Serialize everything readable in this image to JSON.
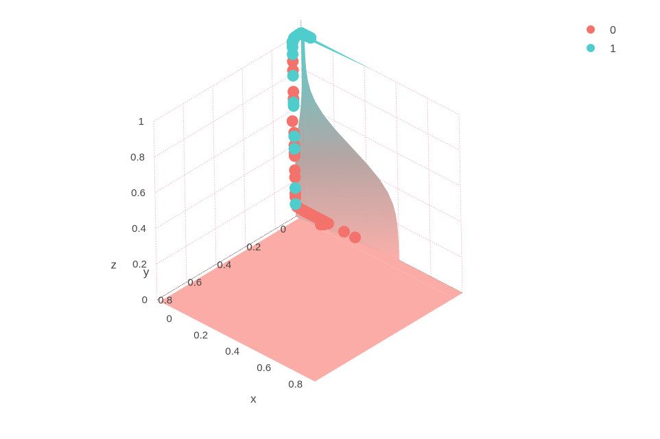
{
  "chart_data": {
    "type": "scatter3d-surface",
    "title": "",
    "axes": {
      "x": {
        "label": "x",
        "range": [
          0,
          1
        ],
        "ticks": [
          "0",
          "0.2",
          "0.4",
          "0.6",
          "0.8"
        ]
      },
      "y": {
        "label": "y",
        "range": [
          0,
          1
        ],
        "ticks": [
          "0",
          "0.2",
          "0.4",
          "0.6",
          "0.8"
        ]
      },
      "z": {
        "label": "z",
        "range": [
          0,
          1
        ],
        "ticks": [
          "0",
          "0.2",
          "0.4",
          "0.6",
          "0.8",
          "1"
        ]
      }
    },
    "grid": true,
    "legend": {
      "placement": "top-right"
    },
    "surface": {
      "description_of_shape": "logistic",
      "colorscale": [
        "#fcaca6",
        "#4ecdcc"
      ],
      "z_range": [
        0,
        1
      ]
    },
    "series": [
      {
        "name": "0",
        "color": "#f3726b",
        "points": [
          [
            0.0,
            0.0,
            0.0
          ],
          [
            0.0,
            0.01,
            0.01
          ],
          [
            0.0,
            0.03,
            0.03
          ],
          [
            0.0,
            0.05,
            0.05
          ],
          [
            0.0,
            0.06,
            0.11
          ],
          [
            0.0,
            0.06,
            0.13
          ],
          [
            0.0,
            0.06,
            0.22
          ],
          [
            0.0,
            0.06,
            0.26
          ],
          [
            0.0,
            0.06,
            0.34
          ],
          [
            0.0,
            0.06,
            0.36
          ],
          [
            0.0,
            0.06,
            0.4
          ],
          [
            0.0,
            0.06,
            0.47
          ],
          [
            0.0,
            0.07,
            0.54
          ],
          [
            0.0,
            0.06,
            0.66
          ],
          [
            0.0,
            0.06,
            0.7
          ],
          [
            0.0,
            0.06,
            0.82
          ],
          [
            0.0,
            0.06,
            0.87
          ],
          [
            0.32,
            0.0,
            0.0
          ],
          [
            0.15,
            0.0,
            0.0
          ],
          [
            0.13,
            0.0,
            0.0
          ],
          [
            0.12,
            0.0,
            0.0
          ],
          [
            0.11,
            0.0,
            0.0
          ],
          [
            0.1,
            0.0,
            0.0
          ],
          [
            0.09,
            0.0,
            0.0
          ],
          [
            0.08,
            0.0,
            0.0
          ],
          [
            0.07,
            0.0,
            0.0
          ],
          [
            0.06,
            0.0,
            0.0
          ],
          [
            0.05,
            0.0,
            0.0
          ],
          [
            0.04,
            0.0,
            0.0
          ],
          [
            0.03,
            0.0,
            0.0
          ],
          [
            0.02,
            0.0,
            0.0
          ],
          [
            0.01,
            0.0,
            0.0
          ],
          [
            0.0,
            0.0,
            0.0
          ],
          [
            0.25,
            0.0,
            0.0
          ],
          [
            0.14,
            0.02,
            0.0
          ],
          [
            0.13,
            0.03,
            0.0
          ]
        ]
      },
      {
        "name": "1",
        "color": "#4ecdcc",
        "points": [
          [
            0.0,
            0.06,
            0.07
          ],
          [
            0.0,
            0.06,
            0.16
          ],
          [
            0.0,
            0.06,
            0.38
          ],
          [
            0.0,
            0.06,
            0.45
          ],
          [
            0.0,
            0.06,
            0.62
          ],
          [
            0.0,
            0.06,
            0.64
          ],
          [
            0.0,
            0.06,
            0.79
          ],
          [
            0.0,
            0.06,
            0.91
          ],
          [
            0.0,
            0.06,
            0.95
          ],
          [
            0.0,
            0.06,
            0.97
          ],
          [
            0.0,
            0.06,
            0.98
          ],
          [
            0.0,
            0.05,
            0.99
          ],
          [
            0.0,
            0.05,
            0.995
          ],
          [
            0.0,
            0.04,
            0.998
          ],
          [
            0.0,
            0.02,
            1.0
          ],
          [
            0.0,
            0.0,
            1.0
          ],
          [
            0.02,
            0.0,
            1.0
          ],
          [
            0.04,
            0.0,
            1.0
          ],
          [
            0.05,
            0.0,
            1.0
          ],
          [
            0.06,
            0.0,
            1.0
          ]
        ]
      }
    ]
  }
}
